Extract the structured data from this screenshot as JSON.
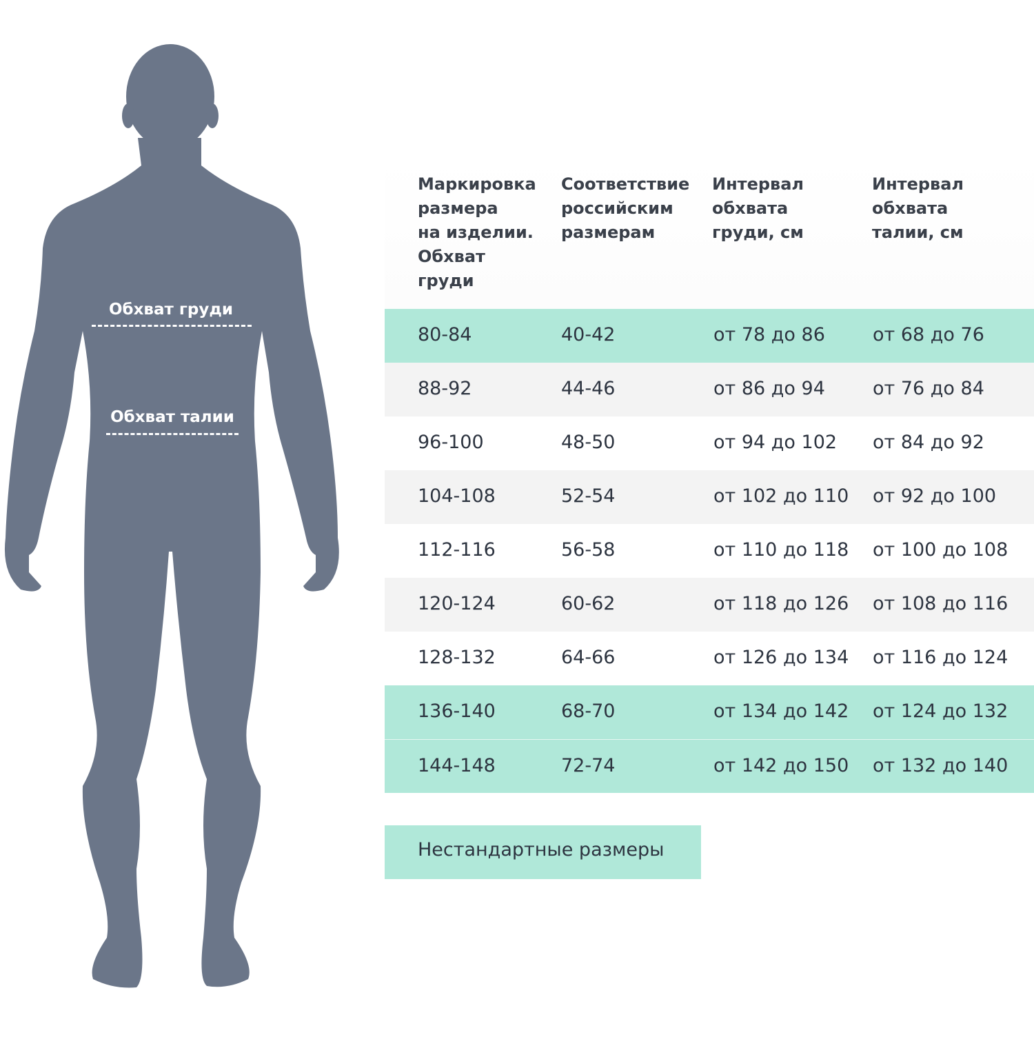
{
  "figure": {
    "body_color": "#6b7689",
    "chest_label": "Обхват груди",
    "waist_label": "Обхват талии"
  },
  "colors": {
    "highlight": "#b0e8d9",
    "stripe": "#f3f3f3",
    "text": "#2d3440"
  },
  "table": {
    "headers": [
      "Маркировка\nразмера\nна изделии.\nОбхват\nгруди",
      "Соответствие\nроссийским\nразмерам",
      "Интервал\nобхвата\nгруди, см",
      "Интервал\nобхвата\nталии, см"
    ],
    "rows": [
      {
        "style": "teal",
        "cells": [
          "80-84",
          "40-42",
          "от 78 до 86",
          "от 68 до 76"
        ]
      },
      {
        "style": "gray",
        "cells": [
          "88-92",
          "44-46",
          "от 86 до 94",
          "от 76 до 84"
        ]
      },
      {
        "style": "white",
        "cells": [
          "96-100",
          "48-50",
          "от 94 до 102",
          "от 84 до 92"
        ]
      },
      {
        "style": "gray",
        "cells": [
          "104-108",
          "52-54",
          "от 102 до 110",
          "от 92 до 100"
        ]
      },
      {
        "style": "white",
        "cells": [
          "112-116",
          "56-58",
          "от 110 до 118",
          "от 100 до 108"
        ]
      },
      {
        "style": "gray",
        "cells": [
          "120-124",
          "60-62",
          "от 118 до 126",
          "от 108 до 116"
        ]
      },
      {
        "style": "white",
        "cells": [
          "128-132",
          "64-66",
          "от 126 до 134",
          "от 116 до 124"
        ]
      },
      {
        "style": "teal",
        "cells": [
          "136-140",
          "68-70",
          "от 134 до 142",
          "от 124 до 132"
        ]
      },
      {
        "style": "teal",
        "cells": [
          "144-148",
          "72-74",
          "от 142 до 150",
          "от 132 до 140"
        ]
      }
    ]
  },
  "nonstandard_button": "Нестандартные размеры"
}
